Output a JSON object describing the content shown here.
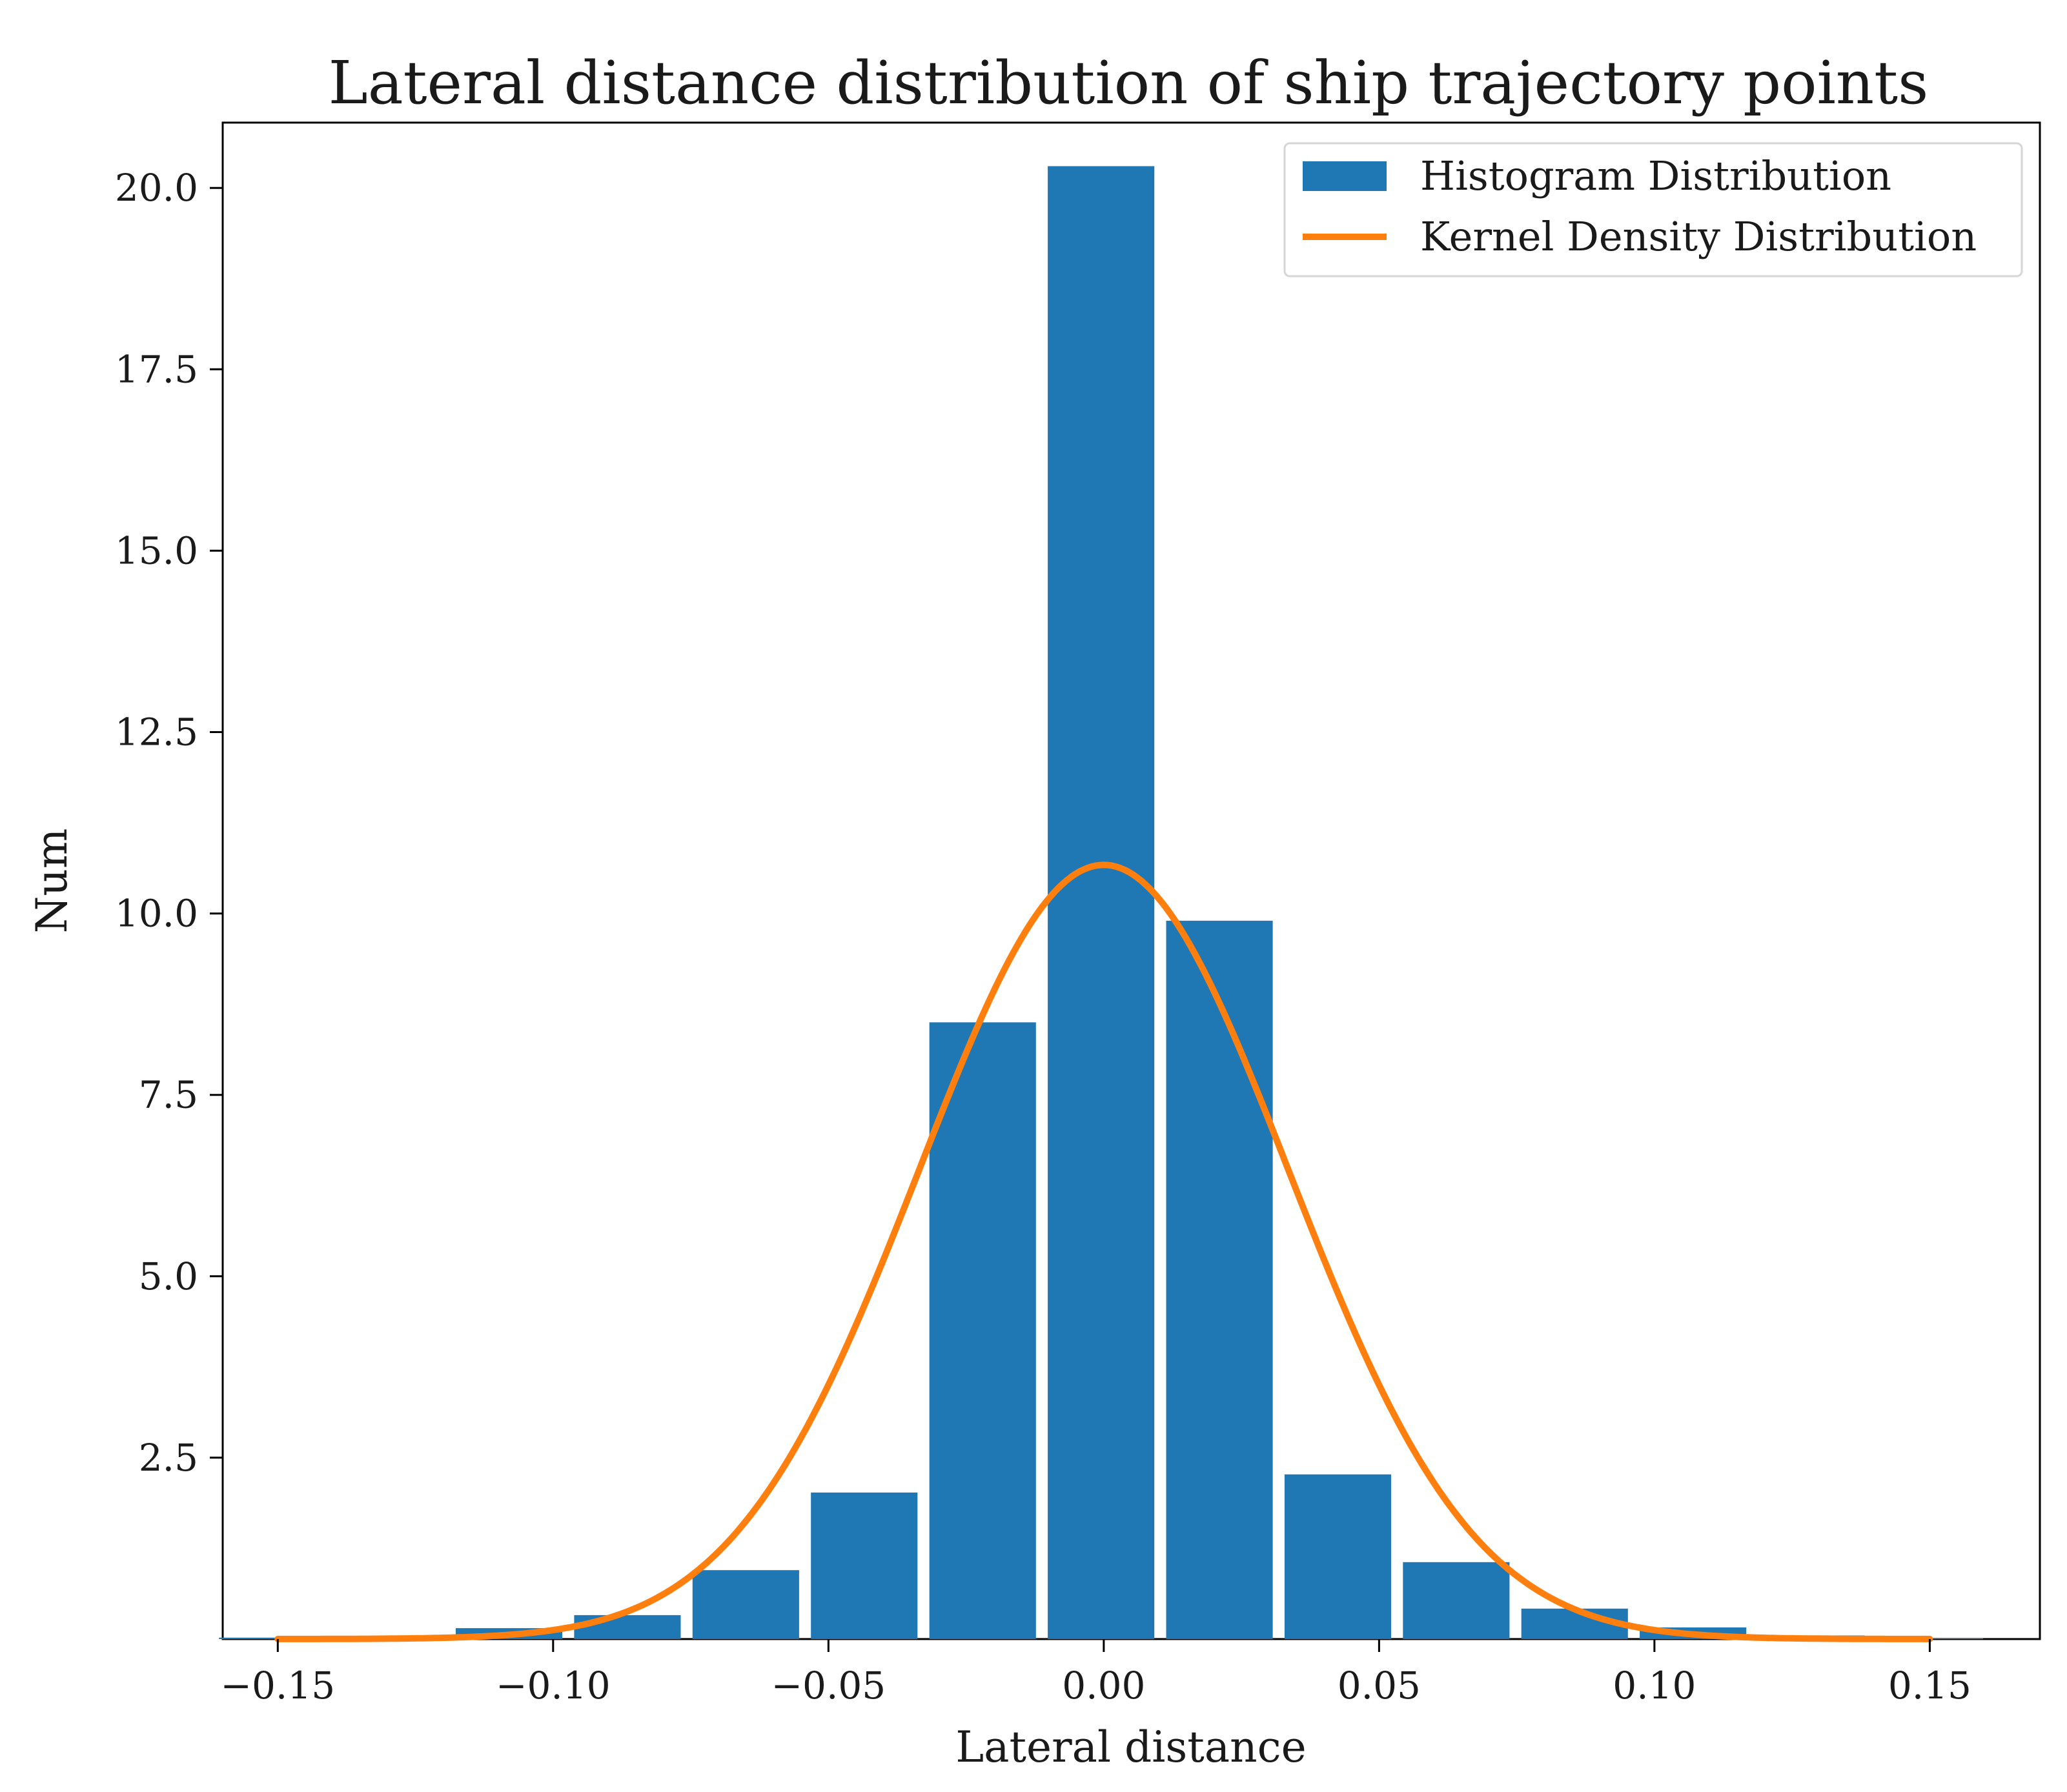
{
  "chart_data": {
    "type": "bar",
    "title": "Lateral distance distribution of ship trajectory points",
    "xlabel": "Lateral distance",
    "ylabel": "Num",
    "xlim": [
      -0.16,
      0.17
    ],
    "ylim": [
      0,
      20.9
    ],
    "x_ticks": [
      -0.15,
      -0.1,
      -0.05,
      0.0,
      0.05,
      0.1,
      0.15
    ],
    "x_tick_labels": [
      "−0.15",
      "−0.10",
      "−0.05",
      "0.00",
      "0.05",
      "0.10",
      "0.15"
    ],
    "y_ticks": [
      2.5,
      5.0,
      7.5,
      10.0,
      12.5,
      15.0,
      17.5,
      20.0
    ],
    "y_tick_labels": [
      "2.5",
      "5.0",
      "7.5",
      "10.0",
      "12.5",
      "15.0",
      "17.5",
      "20.0"
    ],
    "bin_width": 0.0215,
    "bar_width_fraction": 0.9,
    "histogram": {
      "name": "Histogram Distribution",
      "color": "#1f77b4",
      "bin_centers": [
        -0.151,
        -0.1295,
        -0.108,
        -0.0865,
        -0.065,
        -0.0435,
        -0.022,
        -0.0005,
        0.021,
        0.0425,
        0.064,
        0.0855,
        0.107,
        0.1285,
        0.15
      ],
      "values": [
        0.02,
        0.0,
        0.15,
        0.33,
        0.95,
        2.02,
        8.5,
        20.3,
        9.9,
        2.27,
        1.06,
        0.42,
        0.16,
        0.05,
        0.01
      ]
    },
    "kde": {
      "name": "Kernel Density Distribution",
      "color": "#ff7f0e",
      "type": "gaussian",
      "peak": 10.67,
      "mean": 0.0,
      "std": 0.0335,
      "range": [
        -0.15,
        0.15
      ]
    },
    "legend": {
      "placement": "top-right",
      "entries": [
        "Histogram Distribution",
        "Kernel Density Distribution"
      ]
    },
    "grid": false
  }
}
